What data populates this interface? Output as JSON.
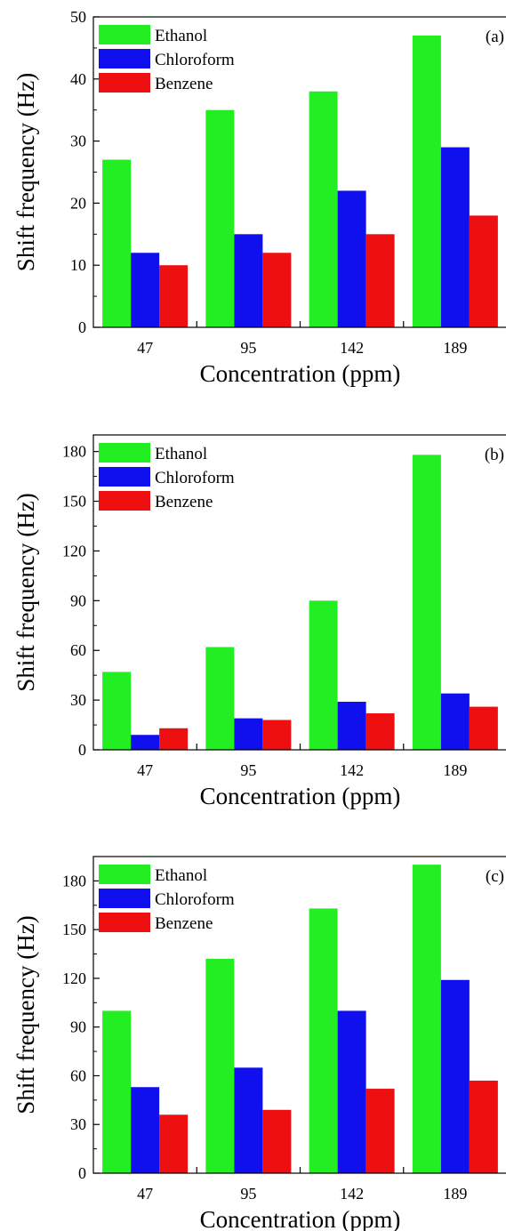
{
  "chart_data": [
    {
      "type": "bar",
      "panel_label": "(a)",
      "categories": [
        "47",
        "95",
        "142",
        "189"
      ],
      "series": [
        {
          "name": "Ethanol",
          "color": "#22ee22",
          "values": [
            27,
            35,
            38,
            47
          ]
        },
        {
          "name": "Chloroform",
          "color": "#1010ee",
          "values": [
            12,
            15,
            22,
            29
          ]
        },
        {
          "name": "Benzene",
          "color": "#ee1010",
          "values": [
            10,
            12,
            15,
            18
          ]
        }
      ],
      "xlabel": "Concentration (ppm)",
      "ylabel": "Shift frequency (Hz)",
      "ylim": [
        0,
        50
      ],
      "yticks": [
        0,
        10,
        20,
        30,
        40,
        50
      ],
      "legend_position": "top-left",
      "grid": false
    },
    {
      "type": "bar",
      "panel_label": "(b)",
      "categories": [
        "47",
        "95",
        "142",
        "189"
      ],
      "series": [
        {
          "name": "Ethanol",
          "color": "#22ee22",
          "values": [
            47,
            62,
            90,
            178
          ]
        },
        {
          "name": "Chloroform",
          "color": "#1010ee",
          "values": [
            9,
            19,
            29,
            34
          ]
        },
        {
          "name": "Benzene",
          "color": "#ee1010",
          "values": [
            13,
            18,
            22,
            26
          ]
        }
      ],
      "xlabel": "Concentration (ppm)",
      "ylabel": "Shift frequency (Hz)",
      "ylim": [
        0,
        190
      ],
      "yticks": [
        0,
        30,
        60,
        90,
        120,
        150,
        180
      ],
      "legend_position": "top-left",
      "grid": false
    },
    {
      "type": "bar",
      "panel_label": "(c)",
      "categories": [
        "47",
        "95",
        "142",
        "189"
      ],
      "series": [
        {
          "name": "Ethanol",
          "color": "#22ee22",
          "values": [
            100,
            132,
            163,
            190
          ]
        },
        {
          "name": "Chloroform",
          "color": "#1010ee",
          "values": [
            53,
            65,
            100,
            119
          ]
        },
        {
          "name": "Benzene",
          "color": "#ee1010",
          "values": [
            36,
            39,
            52,
            57
          ]
        }
      ],
      "xlabel": "Concentration (ppm)",
      "ylabel": "Shift frequency (Hz)",
      "ylim": [
        0,
        195
      ],
      "yticks": [
        0,
        30,
        60,
        90,
        120,
        150,
        180
      ],
      "legend_position": "top-left",
      "grid": false
    }
  ]
}
